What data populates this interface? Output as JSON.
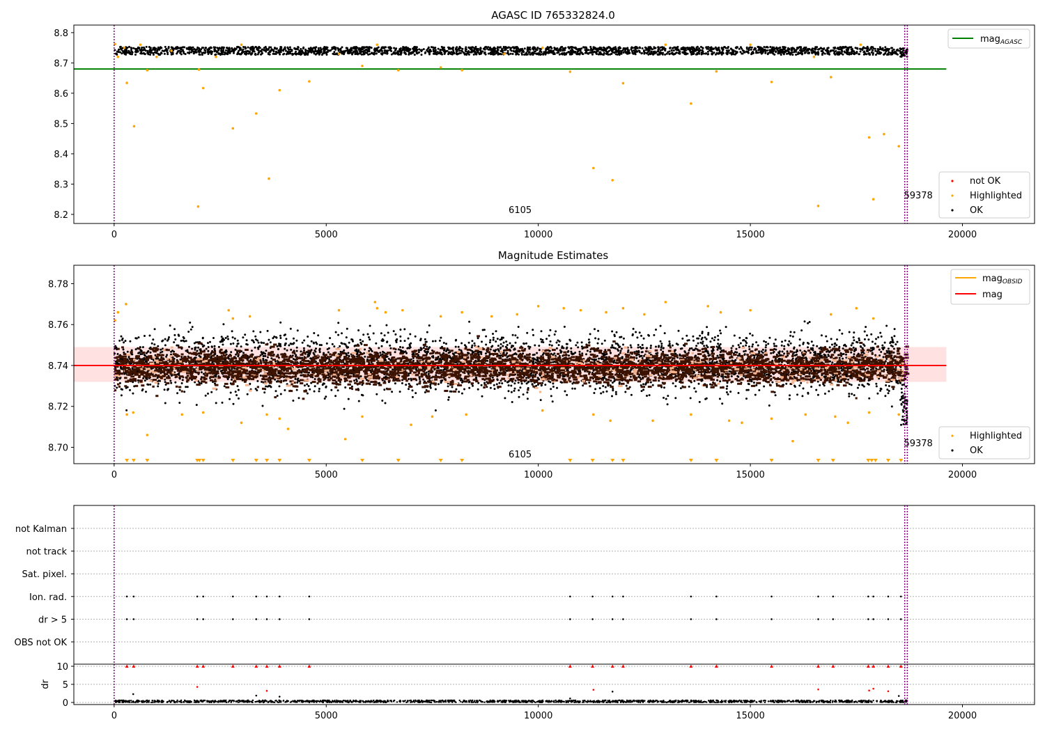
{
  "chart_data": [
    {
      "type": "scatter",
      "title": "AGASC ID 765332824.0",
      "xlim": [
        -950,
        21700
      ],
      "ylim": [
        8.17,
        8.825
      ],
      "xticks": [
        0,
        5000,
        10000,
        15000,
        20000
      ],
      "xtick_labels": [
        "0",
        "5000",
        "10000",
        "15000",
        "20000"
      ],
      "yticks": [
        8.2,
        8.3,
        8.4,
        8.5,
        8.6,
        8.7,
        8.8
      ],
      "ytick_labels": [
        "8.2",
        "8.3",
        "8.4",
        "8.5",
        "8.6",
        "8.7",
        "8.8"
      ],
      "vlines": [
        0,
        18640,
        18700
      ],
      "annotations": [
        {
          "text": "6105",
          "x": 9300,
          "y": 8.205
        },
        {
          "text": "59378",
          "x": 18620,
          "y": 8.253
        }
      ],
      "mag_agasc": 8.68,
      "mag_agasc_xrange": [
        -950,
        19620
      ],
      "ok_band": {
        "center": 8.74,
        "spread": 0.013,
        "xrange": [
          0,
          18700
        ]
      },
      "highlighted_points": [
        [
          20,
          8.762
        ],
        [
          90,
          8.72
        ],
        [
          240,
          8.75
        ],
        [
          300,
          8.634
        ],
        [
          470,
          8.491
        ],
        [
          620,
          8.76
        ],
        [
          780,
          8.676
        ],
        [
          1000,
          8.72
        ],
        [
          1350,
          8.74
        ],
        [
          1980,
          8.226
        ],
        [
          2000,
          8.678
        ],
        [
          2100,
          8.617
        ],
        [
          2400,
          8.72
        ],
        [
          2800,
          8.484
        ],
        [
          3000,
          8.76
        ],
        [
          3350,
          8.533
        ],
        [
          3650,
          8.318
        ],
        [
          3900,
          8.61
        ],
        [
          4600,
          8.639
        ],
        [
          5300,
          8.73
        ],
        [
          5850,
          8.69
        ],
        [
          6200,
          8.76
        ],
        [
          6700,
          8.676
        ],
        [
          7700,
          8.685
        ],
        [
          8200,
          8.676
        ],
        [
          9200,
          8.73
        ],
        [
          10100,
          8.75
        ],
        [
          10750,
          8.671
        ],
        [
          11300,
          8.353
        ],
        [
          11750,
          8.313
        ],
        [
          12000,
          8.633
        ],
        [
          13000,
          8.76
        ],
        [
          13600,
          8.566
        ],
        [
          14200,
          8.672
        ],
        [
          15000,
          8.76
        ],
        [
          15500,
          8.637
        ],
        [
          16500,
          8.72
        ],
        [
          16600,
          8.228
        ],
        [
          16900,
          8.653
        ],
        [
          17600,
          8.76
        ],
        [
          17800,
          8.454
        ],
        [
          17900,
          8.25
        ],
        [
          18150,
          8.465
        ],
        [
          18500,
          8.425
        ]
      ],
      "legend_location": "upper right",
      "legend": [
        "mag_AGASC"
      ],
      "legend2_location": "lower right",
      "legend2": [
        "not OK",
        "Highlighted",
        "OK"
      ],
      "colors": {
        "ok": "#000000",
        "highlighted": "#ffa500",
        "not_ok": "#ff0000",
        "mag_agasc": "#008000",
        "vline": "#800080"
      }
    },
    {
      "type": "scatter",
      "title": "Magnitude Estimates",
      "xlim": [
        -950,
        21700
      ],
      "ylim": [
        8.692,
        8.789
      ],
      "xticks": [
        0,
        5000,
        10000,
        15000,
        20000
      ],
      "xtick_labels": [
        "0",
        "5000",
        "10000",
        "15000",
        "20000"
      ],
      "yticks": [
        8.7,
        8.72,
        8.74,
        8.76,
        8.78
      ],
      "ytick_labels": [
        "8.70",
        "8.72",
        "8.74",
        "8.76",
        "8.78"
      ],
      "vlines": [
        0,
        18640,
        18700
      ],
      "annotations": [
        {
          "text": "6105",
          "x": 9300,
          "y": 8.695
        },
        {
          "text": "59378",
          "x": 18620,
          "y": 8.7005
        }
      ],
      "mag": 8.74,
      "mag_band": [
        8.732,
        8.749
      ],
      "mag_xrange": [
        -950,
        19620
      ],
      "mag_obsid_center": 8.739,
      "mag_obsid_spread": 0.004,
      "ok_center": 8.741,
      "ok_spread": 0.007,
      "offscale_triangles_x": [
        300,
        460,
        780,
        1960,
        2010,
        2100,
        2800,
        3350,
        3600,
        3900,
        4600,
        5850,
        6700,
        7700,
        8200,
        10750,
        11280,
        11750,
        12000,
        13600,
        14200,
        15500,
        16600,
        16950,
        17780,
        17860,
        17950,
        18250,
        18550
      ],
      "highlighted_points": [
        [
          20,
          8.762
        ],
        [
          90,
          8.766
        ],
        [
          280,
          8.77
        ],
        [
          300,
          8.716
        ],
        [
          450,
          8.717
        ],
        [
          780,
          8.706
        ],
        [
          1600,
          8.716
        ],
        [
          2100,
          8.717
        ],
        [
          2700,
          8.767
        ],
        [
          2800,
          8.763
        ],
        [
          3000,
          8.712
        ],
        [
          3200,
          8.764
        ],
        [
          3600,
          8.716
        ],
        [
          3900,
          8.714
        ],
        [
          4100,
          8.709
        ],
        [
          5300,
          8.767
        ],
        [
          5450,
          8.704
        ],
        [
          5850,
          8.715
        ],
        [
          6150,
          8.771
        ],
        [
          6200,
          8.768
        ],
        [
          6400,
          8.766
        ],
        [
          6800,
          8.767
        ],
        [
          7000,
          8.711
        ],
        [
          7500,
          8.715
        ],
        [
          7700,
          8.764
        ],
        [
          8200,
          8.766
        ],
        [
          8300,
          8.716
        ],
        [
          8900,
          8.764
        ],
        [
          9500,
          8.765
        ],
        [
          10000,
          8.769
        ],
        [
          10100,
          8.718
        ],
        [
          10600,
          8.768
        ],
        [
          11000,
          8.767
        ],
        [
          11300,
          8.716
        ],
        [
          11600,
          8.766
        ],
        [
          11700,
          8.713
        ],
        [
          12000,
          8.768
        ],
        [
          12500,
          8.765
        ],
        [
          12700,
          8.713
        ],
        [
          13000,
          8.771
        ],
        [
          13600,
          8.716
        ],
        [
          14000,
          8.769
        ],
        [
          14300,
          8.766
        ],
        [
          14500,
          8.713
        ],
        [
          14800,
          8.712
        ],
        [
          15000,
          8.767
        ],
        [
          15500,
          8.714
        ],
        [
          16000,
          8.703
        ],
        [
          16300,
          8.716
        ],
        [
          16900,
          8.765
        ],
        [
          17000,
          8.715
        ],
        [
          17300,
          8.712
        ],
        [
          17500,
          8.768
        ],
        [
          17800,
          8.717
        ],
        [
          17900,
          8.763
        ],
        [
          18500,
          8.716
        ]
      ],
      "legend_location": "upper right",
      "legend": [
        "mag_OBSID",
        "mag"
      ],
      "legend2_location": "lower right",
      "legend2": [
        "Highlighted",
        "OK"
      ],
      "colors": {
        "ok": "#000000",
        "highlighted": "#ffa500",
        "mag": "#ff0000",
        "mag_band": "#ffc8c8",
        "mag_obsid": "#ffa500",
        "obsid_dark": "#3c1200"
      }
    },
    {
      "type": "scatter",
      "title": "",
      "xlim": [
        -950,
        21700
      ],
      "xticks": [
        0,
        5000,
        10000,
        15000,
        20000
      ],
      "xtick_labels": [
        "0",
        "5000",
        "10000",
        "15000",
        "20000"
      ],
      "flag_rows": [
        "not Kalman",
        "not track",
        "Sat. pixel.",
        "Ion. rad.",
        "dr > 5",
        "OBS not OK"
      ],
      "flag_marks_x": [
        300,
        460,
        1960,
        2100,
        2800,
        3350,
        3600,
        3900,
        4600,
        10750,
        11280,
        11750,
        12000,
        13600,
        14200,
        15500,
        16600,
        16950,
        17780,
        17900,
        18250,
        18550
      ],
      "dr_ylabel": "dr",
      "dr_yticks": [
        0,
        5,
        10
      ],
      "dr_ytick_labels": [
        "0",
        "5",
        "10"
      ],
      "dr_ylim": [
        -0.5,
        10.5
      ],
      "dr_clip_value": 10,
      "dr_spikes": [
        [
          450,
          2.3
        ],
        [
          1960,
          4.3
        ],
        [
          3350,
          1.9
        ],
        [
          3600,
          3.2
        ],
        [
          3900,
          1.6
        ],
        [
          10750,
          1.1
        ],
        [
          11300,
          3.5
        ],
        [
          11750,
          3.0
        ],
        [
          16600,
          3.6
        ],
        [
          17800,
          3.3
        ],
        [
          17900,
          3.8
        ],
        [
          18250,
          3.1
        ],
        [
          18500,
          1.8
        ]
      ],
      "vlines": [
        0,
        18640,
        18700
      ],
      "colors": {
        "dr_ok": "#000000",
        "dr_clipped": "#ff0000",
        "grid": "#b0b0b0"
      }
    }
  ]
}
